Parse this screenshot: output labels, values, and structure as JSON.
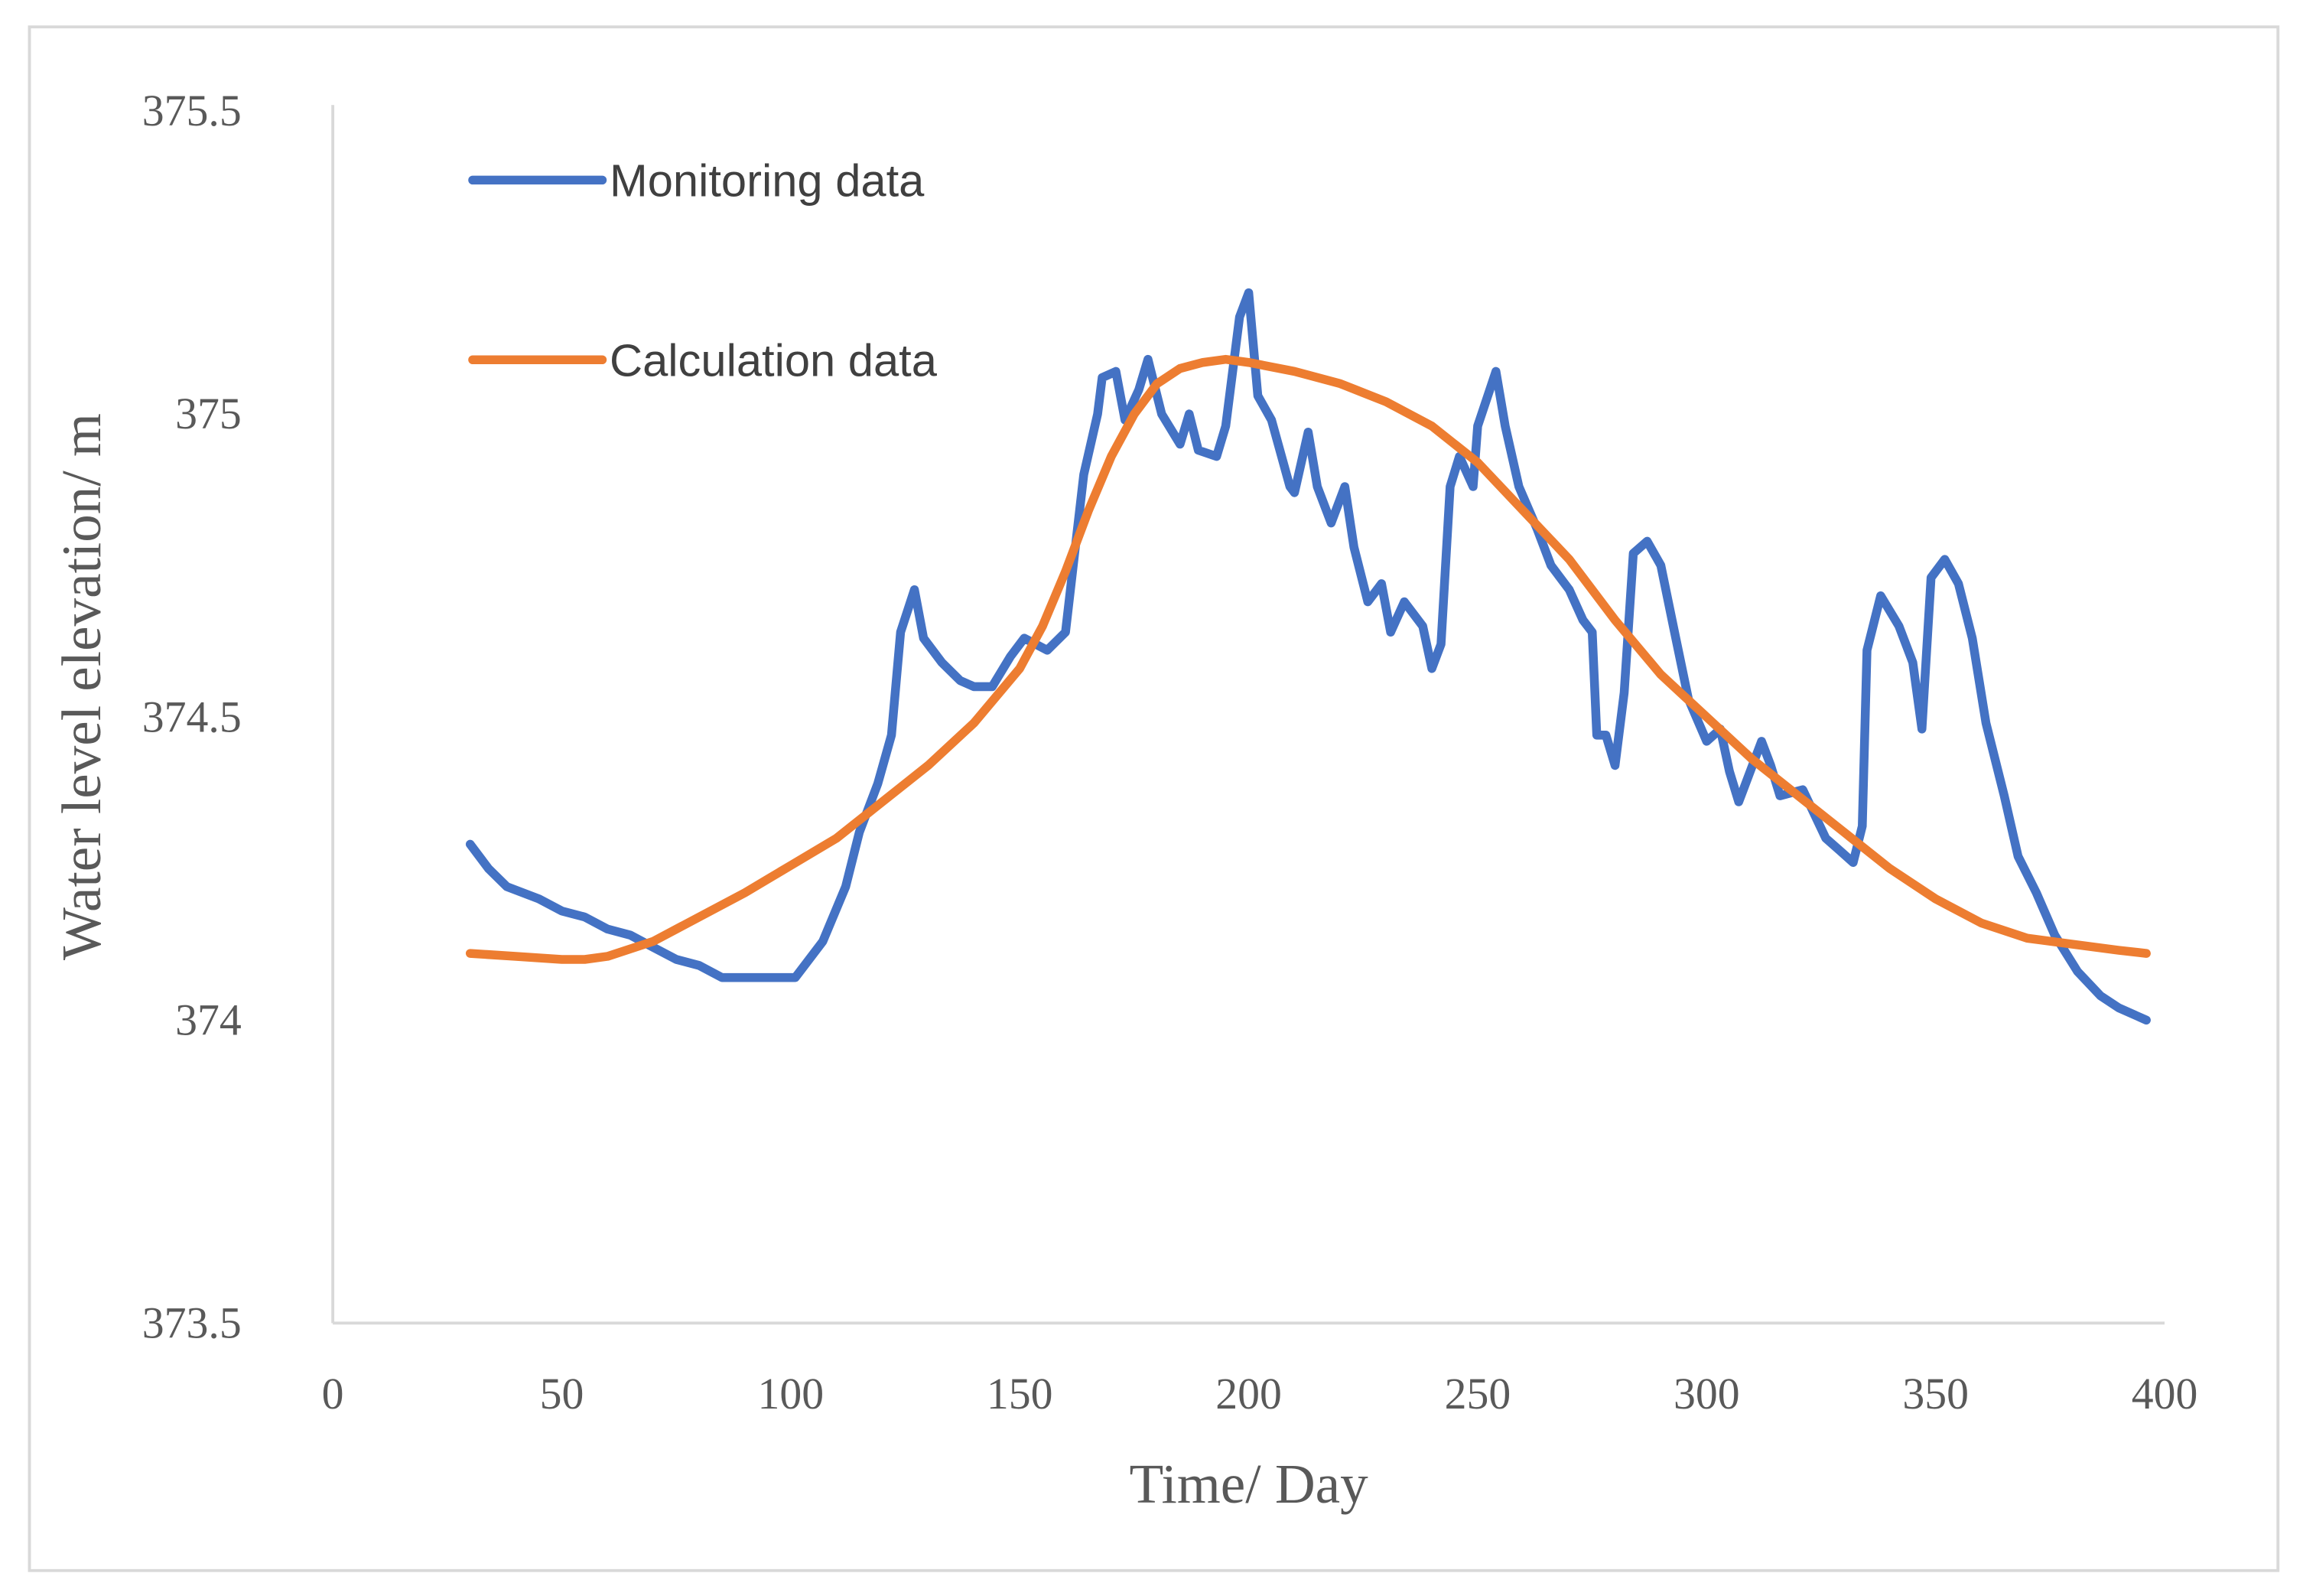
{
  "chart_data": {
    "type": "line",
    "xlabel": "Time/ Day",
    "ylabel": "Water level elevation/ m",
    "xlim": [
      0,
      400
    ],
    "xticks": [
      0,
      50,
      100,
      150,
      200,
      250,
      300,
      350,
      400
    ],
    "ylim": [
      373.5,
      375.5
    ],
    "yticks": [
      373.5,
      374,
      374.5,
      375,
      375.5
    ],
    "grid": false,
    "legend": "upper left",
    "series": [
      {
        "name": "Monitoring data",
        "color": "#4472c4",
        "x": [
          30,
          34,
          38,
          45,
          50,
          55,
          60,
          65,
          70,
          75,
          80,
          85,
          90,
          95,
          101,
          107,
          112,
          115,
          119,
          122,
          124,
          127,
          129,
          133,
          137,
          140,
          144,
          148,
          151,
          156,
          160,
          164,
          167,
          168,
          171,
          173,
          176,
          178,
          181,
          185,
          187,
          189,
          193,
          195,
          198,
          200,
          202,
          205,
          209,
          210,
          213,
          215,
          218,
          221,
          223,
          226,
          229,
          231,
          234,
          238,
          240,
          242,
          244,
          246,
          249,
          250,
          254,
          256,
          259,
          263,
          266,
          270,
          273,
          275,
          276,
          278,
          280,
          282,
          284,
          287,
          290,
          293,
          296,
          300,
          303,
          305,
          307,
          312,
          314,
          316,
          321,
          326,
          329,
          332,
          334,
          335,
          338,
          342,
          345,
          347,
          349,
          352,
          355,
          358,
          361,
          365,
          368,
          372,
          376,
          381,
          386,
          390,
          396
        ],
        "values": [
          374.29,
          374.25,
          374.22,
          374.2,
          374.18,
          374.17,
          374.15,
          374.14,
          374.12,
          374.1,
          374.09,
          374.07,
          374.07,
          374.07,
          374.07,
          374.13,
          374.22,
          374.31,
          374.39,
          374.47,
          374.64,
          374.71,
          374.63,
          374.59,
          374.56,
          374.55,
          374.55,
          374.6,
          374.63,
          374.61,
          374.64,
          374.9,
          375.0,
          375.06,
          375.07,
          374.99,
          375.04,
          375.09,
          375.0,
          374.95,
          375.0,
          374.94,
          374.93,
          374.98,
          375.16,
          375.2,
          375.03,
          374.99,
          374.88,
          374.87,
          374.97,
          374.88,
          374.82,
          374.88,
          374.78,
          374.69,
          374.72,
          374.64,
          374.69,
          374.65,
          374.58,
          374.62,
          374.88,
          374.93,
          374.88,
          374.98,
          375.07,
          374.98,
          374.88,
          374.81,
          374.75,
          374.71,
          374.66,
          374.64,
          374.47,
          374.47,
          374.42,
          374.54,
          374.77,
          374.79,
          374.75,
          374.64,
          374.53,
          374.46,
          374.48,
          374.41,
          374.36,
          374.46,
          374.42,
          374.37,
          374.38,
          374.3,
          374.28,
          374.26,
          374.32,
          374.61,
          374.7,
          374.65,
          374.59,
          374.48,
          374.73,
          374.76,
          374.72,
          374.63,
          374.49,
          374.37,
          374.27,
          374.21,
          374.14,
          374.08,
          374.04,
          374.02,
          374.0
        ]
      },
      {
        "name": "Calculation data",
        "color": "#ed7d31",
        "x": [
          30,
          40,
          50,
          55,
          60,
          70,
          80,
          90,
          100,
          110,
          120,
          130,
          140,
          150,
          155,
          160,
          165,
          170,
          175,
          180,
          185,
          190,
          195,
          200,
          210,
          220,
          230,
          240,
          250,
          260,
          270,
          280,
          290,
          300,
          310,
          320,
          330,
          340,
          350,
          360,
          370,
          380,
          390,
          396
        ],
        "values": [
          374.11,
          374.105,
          374.1,
          374.1,
          374.105,
          374.13,
          374.17,
          374.21,
          374.255,
          374.3,
          374.36,
          374.42,
          374.49,
          374.58,
          374.65,
          374.74,
          374.84,
          374.93,
          375.0,
          375.05,
          375.075,
          375.085,
          375.09,
          375.085,
          375.07,
          375.05,
          375.02,
          374.98,
          374.92,
          374.84,
          374.76,
          374.66,
          374.57,
          374.5,
          374.43,
          374.37,
          374.31,
          374.25,
          374.2,
          374.16,
          374.135,
          374.125,
          374.115,
          374.11
        ]
      }
    ]
  }
}
